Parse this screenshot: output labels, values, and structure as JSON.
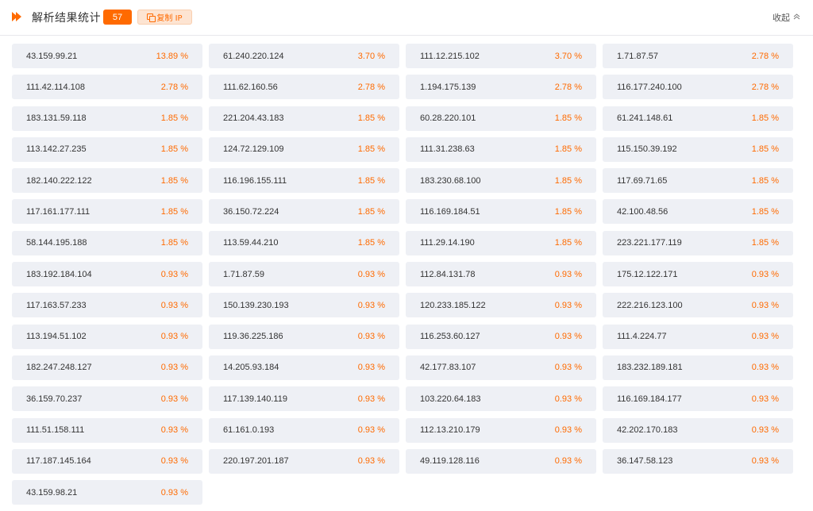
{
  "header": {
    "title": "解析结果统计",
    "count": "57",
    "copy_label": "复制 IP",
    "collapse_label": "收起",
    "collapse_icon": "chevron-up-double-icon",
    "logo_icon": "double-play-icon",
    "accent_color": "#ff6a00"
  },
  "results": [
    {
      "ip": "43.159.99.21",
      "pct": "13.89 %"
    },
    {
      "ip": "61.240.220.124",
      "pct": "3.70 %"
    },
    {
      "ip": "111.12.215.102",
      "pct": "3.70 %"
    },
    {
      "ip": "1.71.87.57",
      "pct": "2.78 %"
    },
    {
      "ip": "111.42.114.108",
      "pct": "2.78 %"
    },
    {
      "ip": "111.62.160.56",
      "pct": "2.78 %"
    },
    {
      "ip": "1.194.175.139",
      "pct": "2.78 %"
    },
    {
      "ip": "116.177.240.100",
      "pct": "2.78 %"
    },
    {
      "ip": "183.131.59.118",
      "pct": "1.85 %"
    },
    {
      "ip": "221.204.43.183",
      "pct": "1.85 %"
    },
    {
      "ip": "60.28.220.101",
      "pct": "1.85 %"
    },
    {
      "ip": "61.241.148.61",
      "pct": "1.85 %"
    },
    {
      "ip": "113.142.27.235",
      "pct": "1.85 %"
    },
    {
      "ip": "124.72.129.109",
      "pct": "1.85 %"
    },
    {
      "ip": "111.31.238.63",
      "pct": "1.85 %"
    },
    {
      "ip": "115.150.39.192",
      "pct": "1.85 %"
    },
    {
      "ip": "182.140.222.122",
      "pct": "1.85 %"
    },
    {
      "ip": "116.196.155.111",
      "pct": "1.85 %"
    },
    {
      "ip": "183.230.68.100",
      "pct": "1.85 %"
    },
    {
      "ip": "117.69.71.65",
      "pct": "1.85 %"
    },
    {
      "ip": "117.161.177.111",
      "pct": "1.85 %"
    },
    {
      "ip": "36.150.72.224",
      "pct": "1.85 %"
    },
    {
      "ip": "116.169.184.51",
      "pct": "1.85 %"
    },
    {
      "ip": "42.100.48.56",
      "pct": "1.85 %"
    },
    {
      "ip": "58.144.195.188",
      "pct": "1.85 %"
    },
    {
      "ip": "113.59.44.210",
      "pct": "1.85 %"
    },
    {
      "ip": "111.29.14.190",
      "pct": "1.85 %"
    },
    {
      "ip": "223.221.177.119",
      "pct": "1.85 %"
    },
    {
      "ip": "183.192.184.104",
      "pct": "0.93 %"
    },
    {
      "ip": "1.71.87.59",
      "pct": "0.93 %"
    },
    {
      "ip": "112.84.131.78",
      "pct": "0.93 %"
    },
    {
      "ip": "175.12.122.171",
      "pct": "0.93 %"
    },
    {
      "ip": "117.163.57.233",
      "pct": "0.93 %"
    },
    {
      "ip": "150.139.230.193",
      "pct": "0.93 %"
    },
    {
      "ip": "120.233.185.122",
      "pct": "0.93 %"
    },
    {
      "ip": "222.216.123.100",
      "pct": "0.93 %"
    },
    {
      "ip": "113.194.51.102",
      "pct": "0.93 %"
    },
    {
      "ip": "119.36.225.186",
      "pct": "0.93 %"
    },
    {
      "ip": "116.253.60.127",
      "pct": "0.93 %"
    },
    {
      "ip": "111.4.224.77",
      "pct": "0.93 %"
    },
    {
      "ip": "182.247.248.127",
      "pct": "0.93 %"
    },
    {
      "ip": "14.205.93.184",
      "pct": "0.93 %"
    },
    {
      "ip": "42.177.83.107",
      "pct": "0.93 %"
    },
    {
      "ip": "183.232.189.181",
      "pct": "0.93 %"
    },
    {
      "ip": "36.159.70.237",
      "pct": "0.93 %"
    },
    {
      "ip": "117.139.140.119",
      "pct": "0.93 %"
    },
    {
      "ip": "103.220.64.183",
      "pct": "0.93 %"
    },
    {
      "ip": "116.169.184.177",
      "pct": "0.93 %"
    },
    {
      "ip": "111.51.158.111",
      "pct": "0.93 %"
    },
    {
      "ip": "61.161.0.193",
      "pct": "0.93 %"
    },
    {
      "ip": "112.13.210.179",
      "pct": "0.93 %"
    },
    {
      "ip": "42.202.170.183",
      "pct": "0.93 %"
    },
    {
      "ip": "117.187.145.164",
      "pct": "0.93 %"
    },
    {
      "ip": "220.197.201.187",
      "pct": "0.93 %"
    },
    {
      "ip": "49.119.128.116",
      "pct": "0.93 %"
    },
    {
      "ip": "36.147.58.123",
      "pct": "0.93 %"
    },
    {
      "ip": "43.159.98.21",
      "pct": "0.93 %"
    }
  ]
}
